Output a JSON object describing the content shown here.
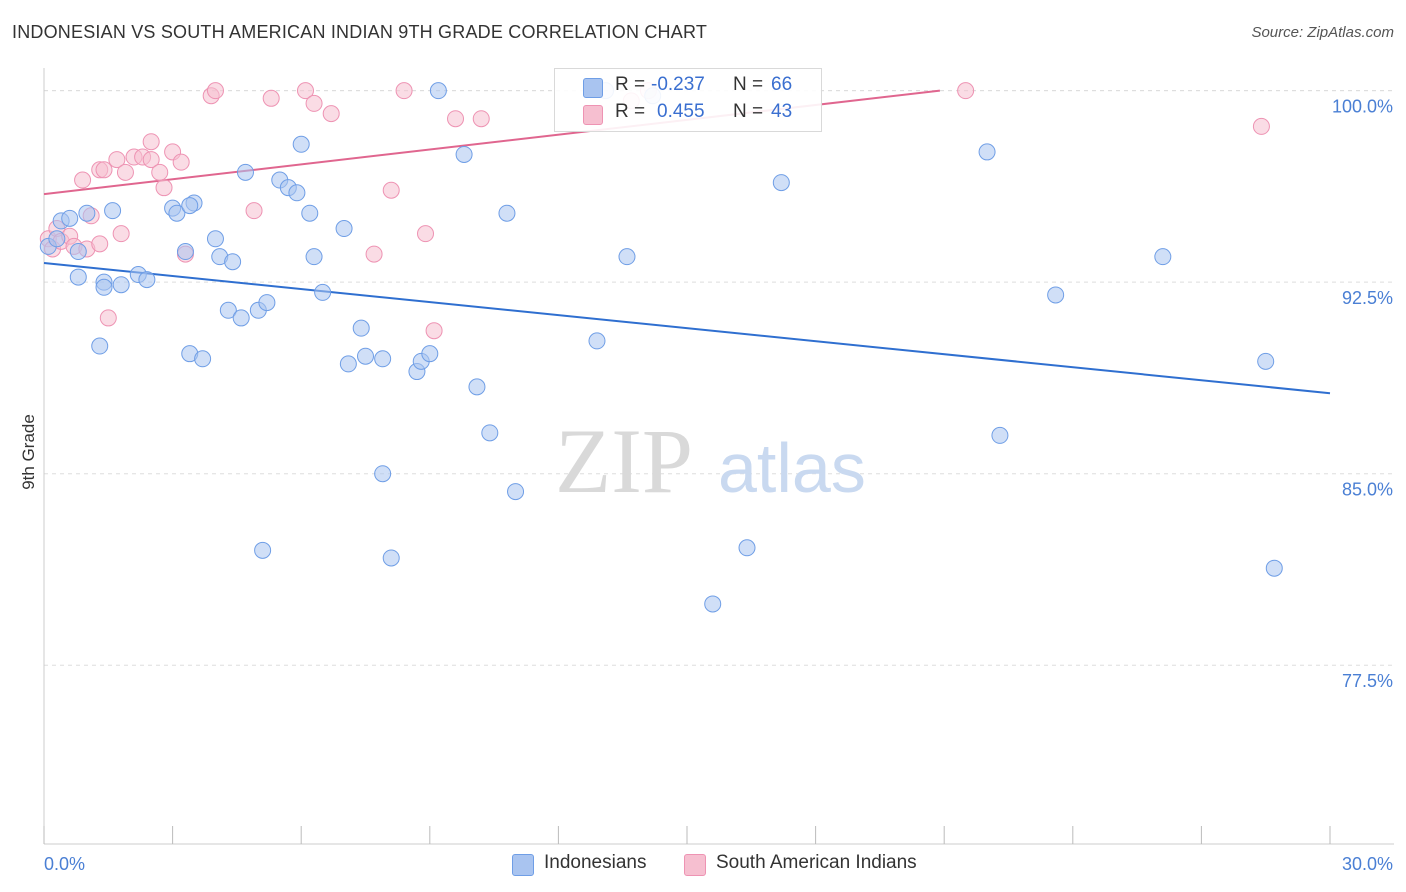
{
  "title": "INDONESIAN VS SOUTH AMERICAN INDIAN 9TH GRADE CORRELATION CHART",
  "source": "Source: ZipAtlas.com",
  "watermark": {
    "zip": "ZIP",
    "atlas": "atlas"
  },
  "colors": {
    "blue_fill": "#a9c4f0",
    "blue_stroke": "#6f9ee6",
    "blue_line": "#2f6fd0",
    "pink_fill": "#f6bfd0",
    "pink_stroke": "#ee93b3",
    "pink_line": "#e0668f",
    "tick_text": "#4a7fd4",
    "grid": "#dddddd"
  },
  "legend": {
    "rows": [
      {
        "r_label": "R =",
        "r_value": "-0.237",
        "n_label": "N =",
        "n_value": "66"
      },
      {
        "r_label": "R =",
        "r_value": "0.455",
        "n_label": "N =",
        "n_value": "43"
      }
    ]
  },
  "bottom_legend": {
    "indonesians": "Indonesians",
    "sai": "South American Indians"
  },
  "chart_data": {
    "type": "scatter",
    "title": "INDONESIAN VS SOUTH AMERICAN INDIAN 9TH GRADE CORRELATION CHART",
    "xlabel": "",
    "ylabel": "9th Grade",
    "xlim": [
      0,
      30
    ],
    "ylim": [
      70.5,
      101.2
    ],
    "x_tick_labels": [
      "0.0%",
      "30.0%"
    ],
    "y_ticks": [
      77.5,
      85.0,
      92.5,
      100.0
    ],
    "y_tick_labels": [
      "77.5%",
      "85.0%",
      "92.5%",
      "100.0%"
    ],
    "grid": "horizontal dashed",
    "legend_position": "top-center",
    "series": [
      {
        "name": "Indonesians",
        "color": "#a9c4f0",
        "trend": {
          "x": [
            0,
            30
          ],
          "y": [
            93.25,
            88.15
          ]
        },
        "points": [
          [
            0.1,
            93.9
          ],
          [
            0.3,
            94.2
          ],
          [
            0.4,
            94.9
          ],
          [
            0.6,
            95.0
          ],
          [
            0.8,
            93.7
          ],
          [
            1.0,
            95.2
          ],
          [
            0.8,
            92.7
          ],
          [
            1.4,
            92.5
          ],
          [
            1.4,
            92.3
          ],
          [
            1.8,
            92.4
          ],
          [
            1.6,
            95.3
          ],
          [
            2.2,
            92.8
          ],
          [
            2.4,
            92.6
          ],
          [
            3.0,
            95.4
          ],
          [
            3.1,
            95.2
          ],
          [
            3.3,
            93.7
          ],
          [
            3.5,
            95.6
          ],
          [
            3.4,
            89.7
          ],
          [
            3.7,
            89.5
          ],
          [
            3.4,
            95.5
          ],
          [
            4.1,
            93.5
          ],
          [
            4.0,
            94.2
          ],
          [
            4.4,
            93.3
          ],
          [
            4.3,
            91.4
          ],
          [
            4.6,
            91.1
          ],
          [
            5.0,
            91.4
          ],
          [
            5.2,
            91.7
          ],
          [
            4.7,
            96.8
          ],
          [
            5.5,
            96.5
          ],
          [
            5.7,
            96.2
          ],
          [
            5.9,
            96.0
          ],
          [
            5.1,
            82.0
          ],
          [
            6.0,
            97.9
          ],
          [
            6.2,
            95.2
          ],
          [
            6.3,
            93.5
          ],
          [
            6.5,
            92.1
          ],
          [
            7.0,
            94.6
          ],
          [
            7.1,
            89.3
          ],
          [
            7.5,
            89.6
          ],
          [
            7.4,
            90.7
          ],
          [
            7.9,
            89.5
          ],
          [
            7.9,
            85.0
          ],
          [
            8.1,
            81.7
          ],
          [
            8.7,
            89.0
          ],
          [
            8.8,
            89.4
          ],
          [
            9.0,
            89.7
          ],
          [
            9.2,
            100.0
          ],
          [
            9.8,
            97.5
          ],
          [
            10.1,
            88.4
          ],
          [
            10.4,
            86.6
          ],
          [
            10.8,
            95.2
          ],
          [
            11.0,
            84.3
          ],
          [
            12.9,
            90.2
          ],
          [
            13.1,
            100.0
          ],
          [
            13.6,
            93.5
          ],
          [
            14.2,
            99.8
          ],
          [
            15.6,
            79.9
          ],
          [
            16.4,
            82.1
          ],
          [
            17.2,
            96.4
          ],
          [
            22.0,
            97.6
          ],
          [
            22.3,
            86.5
          ],
          [
            23.6,
            92.0
          ],
          [
            26.1,
            93.5
          ],
          [
            28.5,
            89.4
          ],
          [
            28.7,
            81.3
          ],
          [
            1.3,
            90.0
          ]
        ]
      },
      {
        "name": "South American Indians",
        "color": "#f6bfd0",
        "trend": {
          "x": [
            0,
            20.9
          ],
          "y": [
            95.95,
            100.0
          ]
        },
        "points": [
          [
            0.1,
            94.2
          ],
          [
            0.2,
            93.8
          ],
          [
            0.3,
            94.6
          ],
          [
            0.4,
            94.1
          ],
          [
            0.6,
            94.3
          ],
          [
            0.7,
            93.9
          ],
          [
            0.9,
            96.5
          ],
          [
            1.0,
            93.8
          ],
          [
            1.1,
            95.1
          ],
          [
            1.3,
            94.0
          ],
          [
            1.3,
            96.9
          ],
          [
            1.4,
            96.9
          ],
          [
            1.5,
            91.1
          ],
          [
            1.7,
            97.3
          ],
          [
            1.8,
            94.4
          ],
          [
            1.9,
            96.8
          ],
          [
            2.1,
            97.4
          ],
          [
            2.3,
            97.4
          ],
          [
            2.5,
            98.0
          ],
          [
            2.5,
            97.3
          ],
          [
            2.7,
            96.8
          ],
          [
            2.8,
            96.2
          ],
          [
            3.0,
            97.6
          ],
          [
            3.2,
            97.2
          ],
          [
            3.3,
            93.6
          ],
          [
            3.9,
            99.8
          ],
          [
            4.0,
            100.0
          ],
          [
            4.9,
            95.3
          ],
          [
            5.3,
            99.7
          ],
          [
            6.1,
            100.0
          ],
          [
            6.3,
            99.5
          ],
          [
            6.7,
            99.1
          ],
          [
            7.7,
            93.6
          ],
          [
            8.1,
            96.1
          ],
          [
            8.4,
            100.0
          ],
          [
            8.9,
            94.4
          ],
          [
            9.1,
            90.6
          ],
          [
            9.6,
            98.9
          ],
          [
            10.2,
            98.9
          ],
          [
            13.7,
            99.6
          ],
          [
            14.1,
            100.0
          ],
          [
            21.5,
            100.0
          ],
          [
            28.4,
            98.6
          ]
        ]
      }
    ]
  }
}
